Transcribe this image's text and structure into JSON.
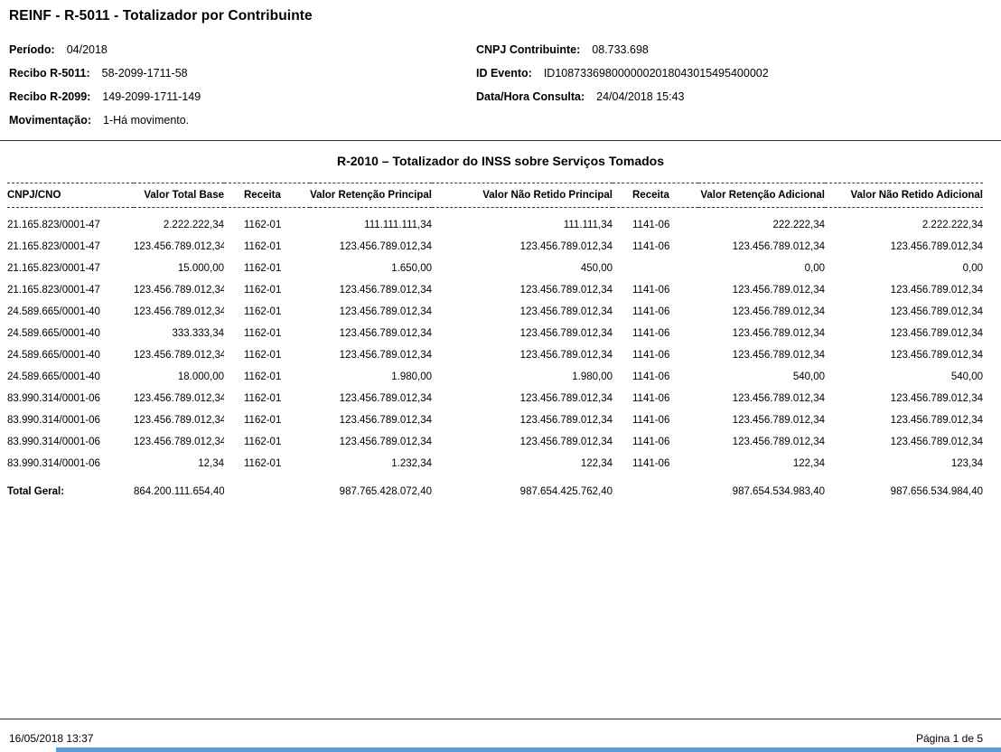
{
  "title": "REINF - R-5011 - Totalizador por Contribuinte",
  "meta_left": [
    {
      "label": "Período:",
      "value": "04/2018"
    },
    {
      "label": "Recibo R-5011:",
      "value": "58-2099-1711-58"
    },
    {
      "label": "Recibo R-2099:",
      "value": "149-2099-1711-149"
    },
    {
      "label": "Movimentação:",
      "value": "1-Há movimento."
    }
  ],
  "meta_right": [
    {
      "label": "CNPJ Contribuinte:",
      "value": "08.733.698"
    },
    {
      "label": "ID Evento:",
      "value": "ID1087336980000002018043015495400002"
    },
    {
      "label": "Data/Hora Consulta:",
      "value": "24/04/2018 15:43"
    }
  ],
  "section_title": "R-2010 – Totalizador do INSS sobre Serviços Tomados",
  "table": {
    "columns": [
      "CNPJ/CNO",
      "Valor Total Base",
      "Receita",
      "Valor Retenção Principal",
      "Valor Não Retido Principal",
      "Receita",
      "Valor Retenção Adicional",
      "Valor Não Retido Adicional"
    ],
    "rows": [
      [
        "21.165.823/0001-47",
        "2.222.222,34",
        "1162-01",
        "111.111.111,34",
        "111.111,34",
        "1141-06",
        "222.222,34",
        "2.222.222,34"
      ],
      [
        "21.165.823/0001-47",
        "123.456.789.012,34",
        "1162-01",
        "123.456.789.012,34",
        "123.456.789.012,34",
        "1141-06",
        "123.456.789.012,34",
        "123.456.789.012,34"
      ],
      [
        "21.165.823/0001-47",
        "15.000,00",
        "1162-01",
        "1.650,00",
        "450,00",
        "",
        "0,00",
        "0,00"
      ],
      [
        "21.165.823/0001-47",
        "123.456.789.012,34",
        "1162-01",
        "123.456.789.012,34",
        "123.456.789.012,34",
        "1141-06",
        "123.456.789.012,34",
        "123.456.789.012,34"
      ],
      [
        "24.589.665/0001-40",
        "123.456.789.012,34",
        "1162-01",
        "123.456.789.012,34",
        "123.456.789.012,34",
        "1141-06",
        "123.456.789.012,34",
        "123.456.789.012,34"
      ],
      [
        "24.589.665/0001-40",
        "333.333,34",
        "1162-01",
        "123.456.789.012,34",
        "123.456.789.012,34",
        "1141-06",
        "123.456.789.012,34",
        "123.456.789.012,34"
      ],
      [
        "24.589.665/0001-40",
        "123.456.789.012,34",
        "1162-01",
        "123.456.789.012,34",
        "123.456.789.012,34",
        "1141-06",
        "123.456.789.012,34",
        "123.456.789.012,34"
      ],
      [
        "24.589.665/0001-40",
        "18.000,00",
        "1162-01",
        "1.980,00",
        "1.980,00",
        "1141-06",
        "540,00",
        "540,00"
      ],
      [
        "83.990.314/0001-06",
        "123.456.789.012,34",
        "1162-01",
        "123.456.789.012,34",
        "123.456.789.012,34",
        "1141-06",
        "123.456.789.012,34",
        "123.456.789.012,34"
      ],
      [
        "83.990.314/0001-06",
        "123.456.789.012,34",
        "1162-01",
        "123.456.789.012,34",
        "123.456.789.012,34",
        "1141-06",
        "123.456.789.012,34",
        "123.456.789.012,34"
      ],
      [
        "83.990.314/0001-06",
        "123.456.789.012,34",
        "1162-01",
        "123.456.789.012,34",
        "123.456.789.012,34",
        "1141-06",
        "123.456.789.012,34",
        "123.456.789.012,34"
      ],
      [
        "83.990.314/0001-06",
        "12,34",
        "1162-01",
        "1.232,34",
        "122,34",
        "1141-06",
        "122,34",
        "123,34"
      ]
    ],
    "total_row": [
      "Total Geral:",
      "864.200.111.654,40",
      "",
      "987.765.428.072,40",
      "987.654.425.762,40",
      "",
      "987.654.534.983,40",
      "987.656.534.984,40"
    ]
  },
  "footer": {
    "generated": "16/05/2018 13:37",
    "page": "Página 1 de 5"
  }
}
